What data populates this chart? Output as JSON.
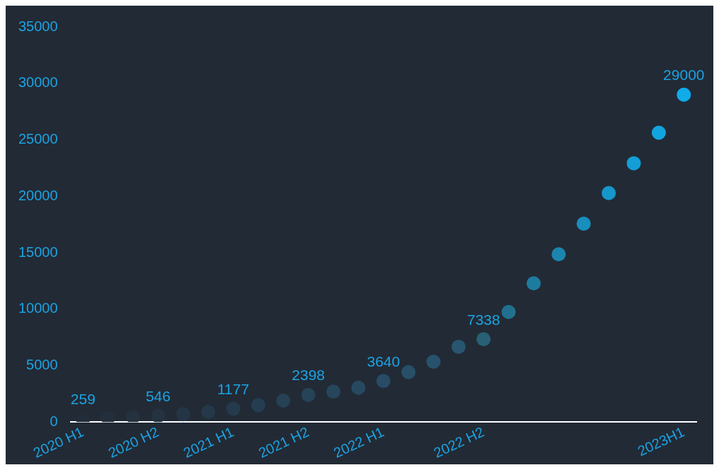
{
  "chart_data": {
    "type": "scatter",
    "categories": [
      "2020 H1",
      null,
      null,
      "2020 H2",
      null,
      null,
      "2021 H1",
      null,
      null,
      "2021 H2",
      null,
      null,
      "2022 H1",
      null,
      null,
      null,
      "2022 H2",
      null,
      null,
      null,
      null,
      null,
      null,
      null,
      "2023H1"
    ],
    "values": [
      259,
      350,
      450,
      546,
      700,
      900,
      1177,
      1500,
      1900,
      2398,
      2700,
      3040,
      3640,
      4420,
      5350,
      6670,
      7338,
      9750,
      12290,
      14860,
      17570,
      20280,
      22920,
      25630,
      29000
    ],
    "value_labels": [
      "259",
      null,
      null,
      "546",
      null,
      null,
      "1177",
      null,
      null,
      "2398",
      null,
      null,
      "3640",
      null,
      null,
      null,
      "7338",
      null,
      null,
      null,
      null,
      null,
      null,
      null,
      "29000"
    ],
    "colors": [
      "#232d39",
      "#232f3c",
      "#24313f",
      "#243342",
      "#243545",
      "#253849",
      "#253a4c",
      "#253d50",
      "#264054",
      "#264358",
      "#26465c",
      "#274960",
      "#274c64",
      "#274f68",
      "#28526c",
      "#285570",
      "#286075",
      "#22708f",
      "#1e7ba0",
      "#1b85ae",
      "#188fbd",
      "#1597cb",
      "#139ed6",
      "#11a5e0",
      "#10abe9"
    ],
    "marker": "circle",
    "ylim": [
      0,
      35000
    ],
    "yticks": [
      0,
      5000,
      10000,
      15000,
      20000,
      25000,
      30000,
      35000
    ],
    "grid": false,
    "legend": false
  }
}
